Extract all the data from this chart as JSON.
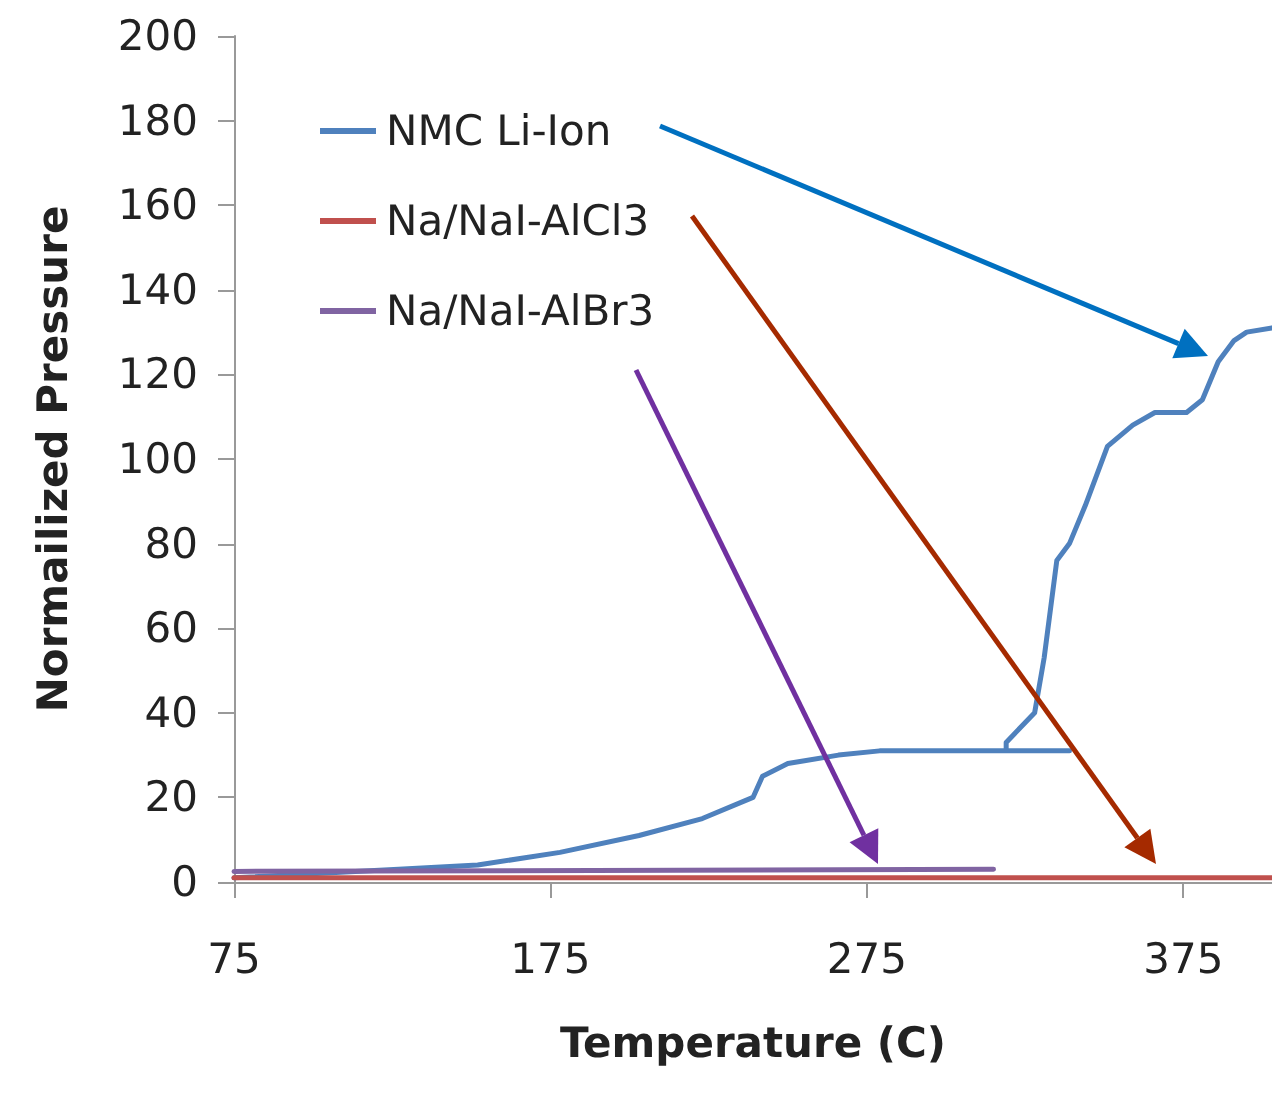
{
  "chart_data": {
    "type": "line",
    "xlabel": "Temperature (C)",
    "ylabel": "Normailized Pressure",
    "xlim": [
      75,
      403
    ],
    "xticks": [
      75,
      175,
      275,
      375
    ],
    "ylim": [
      0,
      200
    ],
    "yticks": [
      0,
      20,
      40,
      60,
      80,
      100,
      120,
      140,
      160,
      180,
      200
    ],
    "grid": false,
    "legend": "top left",
    "marker": "none",
    "line_style": "solid",
    "series": [
      {
        "name": "NMC Li-Ion",
        "color": "#4f81bd",
        "x": [
          75,
          127,
          152,
          178,
          203,
          223,
          239,
          242,
          250,
          266,
          279,
          339,
          319,
          319,
          328,
          331,
          335,
          339,
          344,
          351,
          359,
          366,
          376,
          381,
          386,
          391,
          395,
          403
        ],
        "values": [
          1,
          3,
          4,
          7,
          11,
          15,
          20,
          25,
          28,
          30,
          31,
          31,
          31,
          33,
          40,
          53,
          76,
          80,
          89,
          103,
          108,
          111,
          111,
          114,
          123,
          128,
          130,
          131
        ]
      },
      {
        "name": "Na/NaI-AlCl3",
        "color": "#c0504d",
        "x": [
          75,
          403
        ],
        "values": [
          1,
          1
        ]
      },
      {
        "name": "Na/NaI-AlBr3",
        "color": "#8064a2",
        "x": [
          75,
          315
        ],
        "values": [
          2.5,
          3
        ]
      }
    ]
  }
}
